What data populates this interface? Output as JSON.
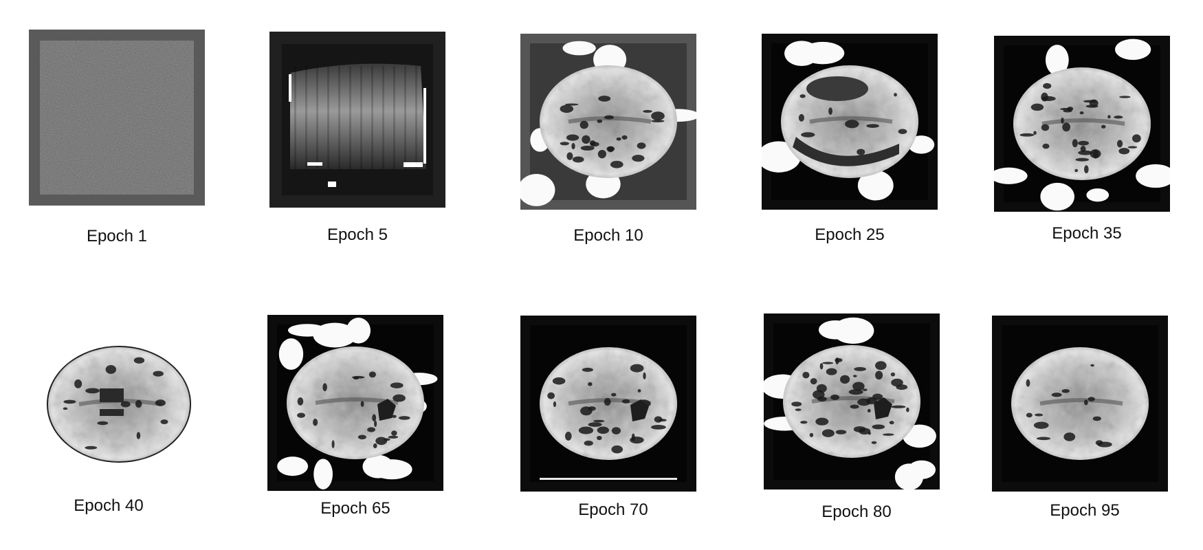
{
  "figure": {
    "samples": [
      {
        "label": "Epoch 1",
        "stage": "noise"
      },
      {
        "label": "Epoch 5",
        "stage": "blur"
      },
      {
        "label": "Epoch 10",
        "stage": "early-shape"
      },
      {
        "label": "Epoch 25",
        "stage": "brain-rough"
      },
      {
        "label": "Epoch 35",
        "stage": "brain-speckled"
      },
      {
        "label": "Epoch 40",
        "stage": "brain-white-bg"
      },
      {
        "label": "Epoch 65",
        "stage": "brain-splotches"
      },
      {
        "label": "Epoch 70",
        "stage": "brain-clean"
      },
      {
        "label": "Epoch 80",
        "stage": "brain-dark-holes"
      },
      {
        "label": "Epoch 95",
        "stage": "brain-final"
      }
    ],
    "colors": {
      "background": "#ffffff",
      "frame_gray": "#555555",
      "frame_dark": "#111111"
    }
  }
}
